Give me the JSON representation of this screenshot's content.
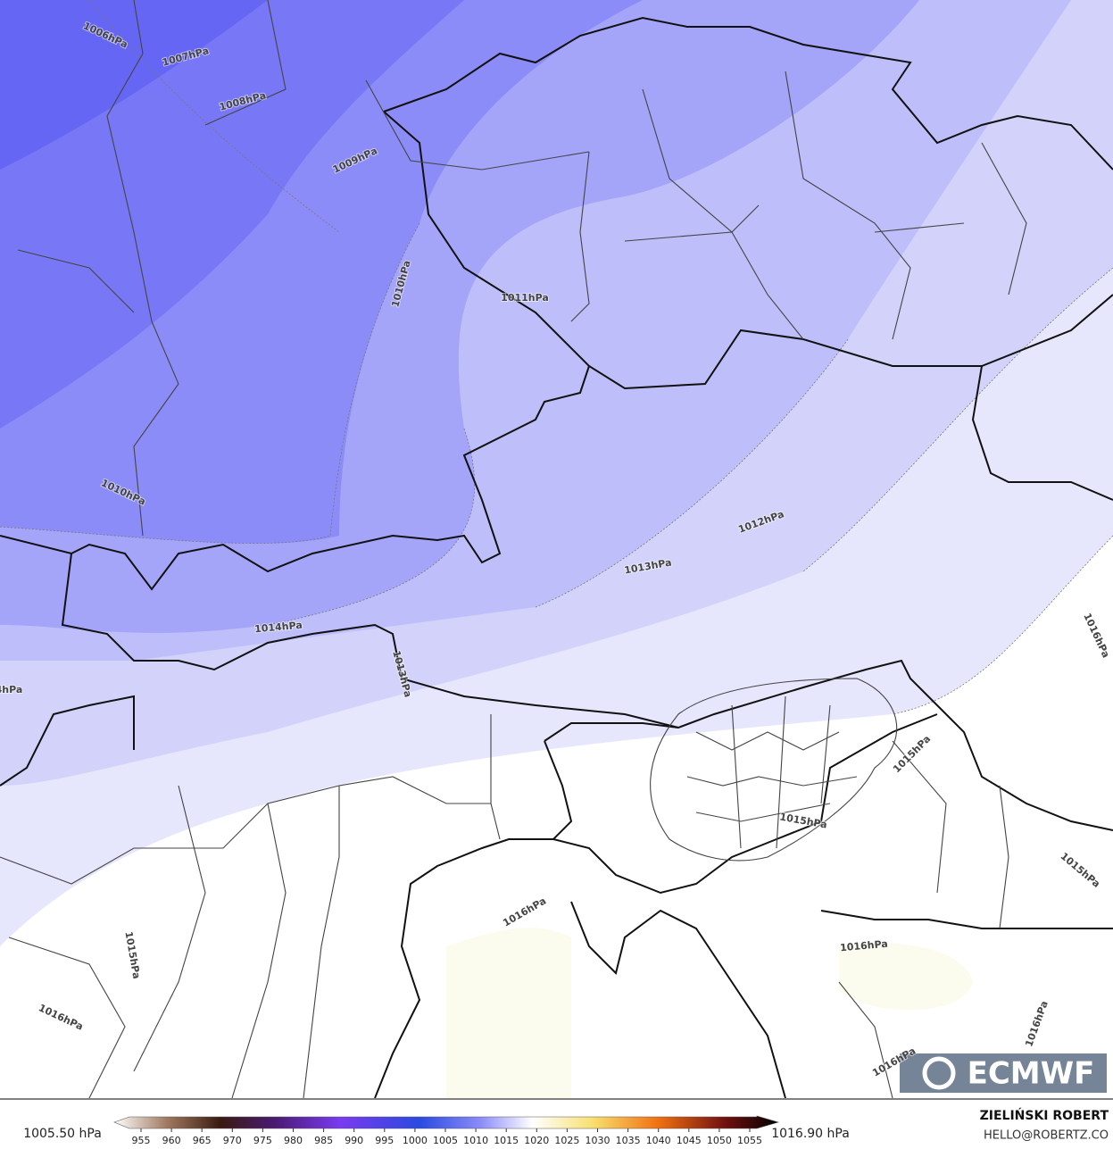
{
  "isobar_labels": [
    "1006hPa",
    "1007hPa",
    "1008hPa",
    "1009hPa",
    "1010hPa",
    "1011hPa",
    "1010hPa",
    "1012hPa",
    "1013hPa",
    "1014hPa",
    "1013hPa",
    "1015hPa",
    "1015hPa",
    "1015hPa",
    "1016hPa",
    "1016hPa",
    "1016hPa",
    "1016hPa",
    "1016hPa",
    "1015hPa",
    "1016hPa",
    "4hPa"
  ],
  "logo": "ECMWF",
  "colorbar": {
    "min_label": "1005.50 hPa",
    "max_label": "1016.90 hPa",
    "ticks": [
      955,
      960,
      965,
      970,
      975,
      980,
      985,
      990,
      995,
      1000,
      1005,
      1010,
      1015,
      1020,
      1025,
      1030,
      1035,
      1040,
      1045,
      1050,
      1055
    ]
  },
  "footer": {
    "author": "ZIELIŃSKI ROBERT",
    "email": "HELLO@ROBERTZ.CO"
  }
}
